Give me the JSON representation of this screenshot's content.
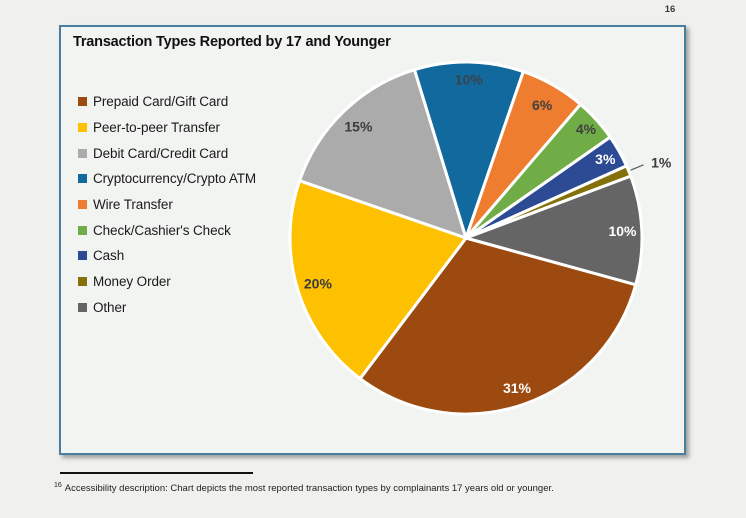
{
  "page": {
    "number": "16"
  },
  "chart_data": {
    "type": "pie",
    "title": "Transaction Types Reported by 17 and Younger",
    "value_suffix": "%",
    "start_angle_deg": 105.4,
    "clockwise": true,
    "slice_gap_stroke": "#ffffff",
    "legend_position": "left",
    "slices": [
      {
        "label": "Prepaid Card/Gift Card",
        "value": 31,
        "color": "#9c4a0f",
        "label_color": "#ffffff",
        "label_r": 0.9,
        "label_pos": "inside"
      },
      {
        "label": "Peer-to-peer Transfer",
        "value": 20,
        "color": "#fdc101",
        "label_color": "#3b3b3b",
        "label_r": 0.88,
        "label_pos": "inside"
      },
      {
        "label": "Debit Card/Credit Card",
        "value": 15,
        "color": "#ababab",
        "label_color": "#3c3c3c",
        "label_r": 0.88,
        "label_pos": "inside"
      },
      {
        "label": "Cryptocurrency/Crypto ATM",
        "value": 10,
        "color": "#11699e",
        "label_color": "#39444c",
        "label_r": 0.9,
        "label_pos": "inside"
      },
      {
        "label": "Wire Transfer",
        "value": 6,
        "color": "#ee7d30",
        "label_color": "#404040",
        "label_r": 0.87,
        "label_pos": "inside"
      },
      {
        "label": "Check/Cashier's Check",
        "value": 4,
        "color": "#71ad47",
        "label_color": "#404040",
        "label_r": 0.92,
        "label_pos": "inside"
      },
      {
        "label": "Cash",
        "value": 3,
        "color": "#2c4b94",
        "label_color": "#ffffff",
        "label_r": 0.91,
        "label_pos": "inside"
      },
      {
        "label": "Money Order",
        "value": 1,
        "color": "#857109",
        "label_color": "#3b3b3b",
        "label_r": 1.0,
        "label_pos": "outside"
      },
      {
        "label": "Other",
        "value": 10,
        "color": "#656565",
        "label_color": "#ffffff",
        "label_r": 0.89,
        "label_pos": "inside"
      }
    ]
  },
  "footnote": {
    "marker": "16",
    "text": "Accessibility description: Chart depicts the most reported transaction types by complainants 17 years old or younger."
  }
}
